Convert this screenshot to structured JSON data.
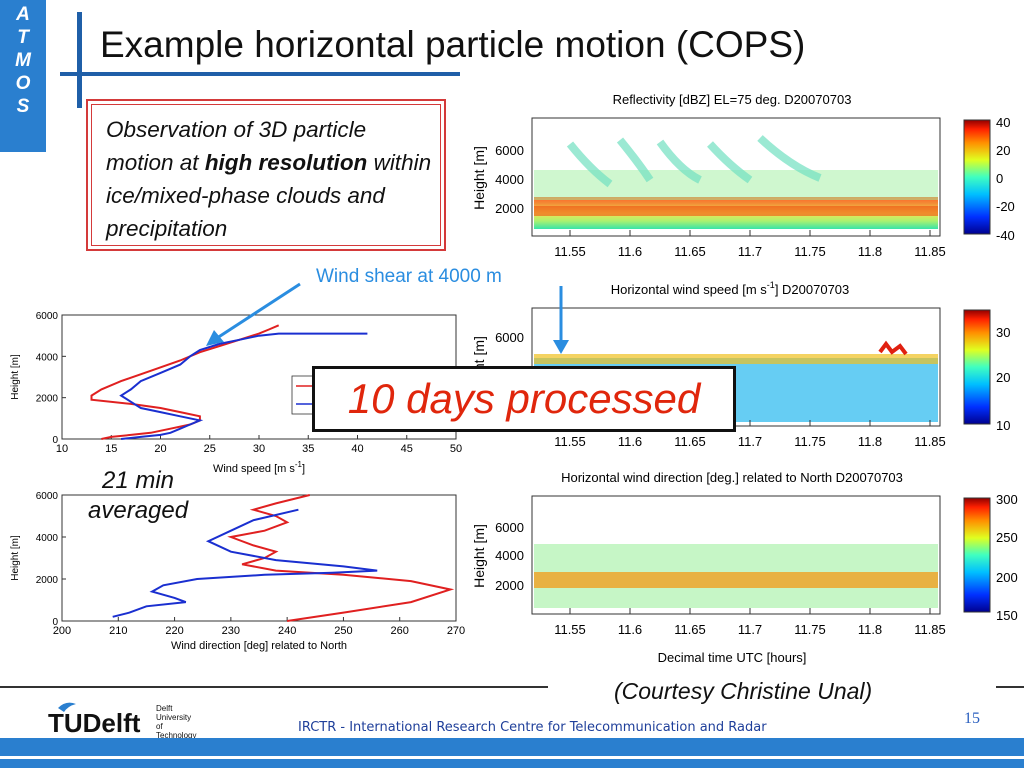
{
  "sidebar": {
    "letters": [
      "A",
      "T",
      "M",
      "O",
      "S"
    ]
  },
  "title": "Example horizontal particle motion (COPS)",
  "observation": {
    "text_before": "Observation of 3D particle motion at ",
    "bold": "high resolution",
    "text_after": " within ice/mixed-phase clouds and precipitation"
  },
  "annotations": {
    "wind_shear": "Wind shear at 4000 m",
    "days": "10 days processed",
    "min21_line1": "21 min",
    "min21_line2": "averaged",
    "courtesy": "(Courtesy Christine Unal)"
  },
  "footer": {
    "irctr": "IRCTR - International Research Centre for Telecommunication and Radar",
    "page": "15",
    "logo_text": "TUDelft",
    "logo_sub": [
      "Delft",
      "University of",
      "Technology"
    ]
  },
  "chart_data": [
    {
      "type": "heatmap",
      "title": "Reflectivity [dBZ]   EL=75 deg.  D20070703",
      "ylabel": "Height [m]",
      "x_ticks": [
        "11.55",
        "11.6",
        "11.65",
        "11.7",
        "11.75",
        "11.8",
        "11.85"
      ],
      "y_ticks": [
        "2000",
        "4000",
        "6000"
      ],
      "colorbar_ticks": [
        "40",
        "20",
        "0",
        "-20",
        "-40"
      ]
    },
    {
      "type": "heatmap",
      "title": "Horizontal wind speed [m s-1]  D20070703",
      "title_main": "Horizontal wind speed [m s",
      "title_sup": "-1",
      "title_end": "]  D20070703",
      "ylabel": "Height [m]",
      "x_ticks": [
        "11.55",
        "11.6",
        "11.65",
        "11.7",
        "11.75",
        "11.8",
        "11.85"
      ],
      "y_ticks": [
        "6000"
      ],
      "colorbar_ticks": [
        "30",
        "20",
        "10"
      ]
    },
    {
      "type": "heatmap",
      "title": "Horizontal wind direction [deg.] related to North  D20070703",
      "ylabel": "Height [m]",
      "xlabel": "Decimal time UTC [hours]",
      "x_ticks": [
        "11.55",
        "11.6",
        "11.65",
        "11.7",
        "11.75",
        "11.8",
        "11.85"
      ],
      "y_ticks": [
        "2000",
        "4000",
        "6000"
      ],
      "colorbar_ticks": [
        "300",
        "250",
        "200",
        "150"
      ]
    },
    {
      "type": "line",
      "xlabel_main": "Wind speed [m s",
      "xlabel_sup": "-1",
      "xlabel_end": "]",
      "ylabel": "Height [m]",
      "xlim": [
        10,
        50
      ],
      "ylim": [
        0,
        6000
      ],
      "x_ticks": [
        "10",
        "15",
        "20",
        "25",
        "30",
        "35",
        "40",
        "45",
        "50"
      ],
      "y_ticks": [
        "0",
        "2000",
        "4000",
        "6000"
      ],
      "series": [
        {
          "color": "#e02020",
          "x": [
            14,
            15,
            17,
            19,
            21,
            23,
            24,
            24,
            22,
            20,
            17,
            13,
            13,
            14,
            16,
            19,
            22,
            24,
            26,
            28,
            30,
            31,
            32
          ],
          "y": [
            0,
            100,
            200,
            300,
            500,
            700,
            900,
            1100,
            1300,
            1500,
            1700,
            1900,
            2100,
            2400,
            2800,
            3300,
            3800,
            4200,
            4500,
            4800,
            5100,
            5300,
            5500
          ]
        },
        {
          "color": "#1a2fd0",
          "x": [
            16,
            18,
            20,
            21,
            22,
            23,
            24,
            22,
            20,
            18,
            17,
            16,
            17,
            18,
            20,
            22,
            23,
            24,
            26,
            28,
            30,
            32,
            41
          ],
          "y": [
            0,
            100,
            200,
            300,
            500,
            700,
            900,
            1100,
            1300,
            1500,
            1800,
            2100,
            2400,
            2800,
            3200,
            3600,
            4000,
            4300,
            4600,
            4800,
            5000,
            5100,
            5100
          ]
        }
      ]
    },
    {
      "type": "line",
      "xlabel": "Wind direction [deg] related to North",
      "ylabel": "Height [m]",
      "xlim": [
        200,
        270
      ],
      "ylim": [
        0,
        6000
      ],
      "x_ticks": [
        "200",
        "210",
        "220",
        "230",
        "240",
        "250",
        "260",
        "270"
      ],
      "y_ticks": [
        "0",
        "2000",
        "4000",
        "6000"
      ],
      "series": [
        {
          "color": "#e02020",
          "x": [
            240,
            250,
            262,
            269,
            262,
            250,
            238,
            232,
            236,
            238,
            234,
            230,
            236,
            240,
            238,
            234,
            238,
            244
          ],
          "y": [
            0,
            400,
            900,
            1500,
            1900,
            2200,
            2400,
            2700,
            3000,
            3300,
            3600,
            4000,
            4300,
            4700,
            5000,
            5300,
            5600,
            6000
          ]
        },
        {
          "color": "#1a2fd0",
          "x": [
            209,
            212,
            215,
            222,
            220,
            216,
            218,
            224,
            236,
            248,
            256,
            250,
            238,
            230,
            226,
            230,
            234,
            242
          ],
          "y": [
            200,
            400,
            700,
            900,
            1100,
            1400,
            1700,
            2000,
            2200,
            2300,
            2400,
            2600,
            2900,
            3300,
            3800,
            4300,
            4800,
            5300
          ]
        }
      ]
    }
  ]
}
